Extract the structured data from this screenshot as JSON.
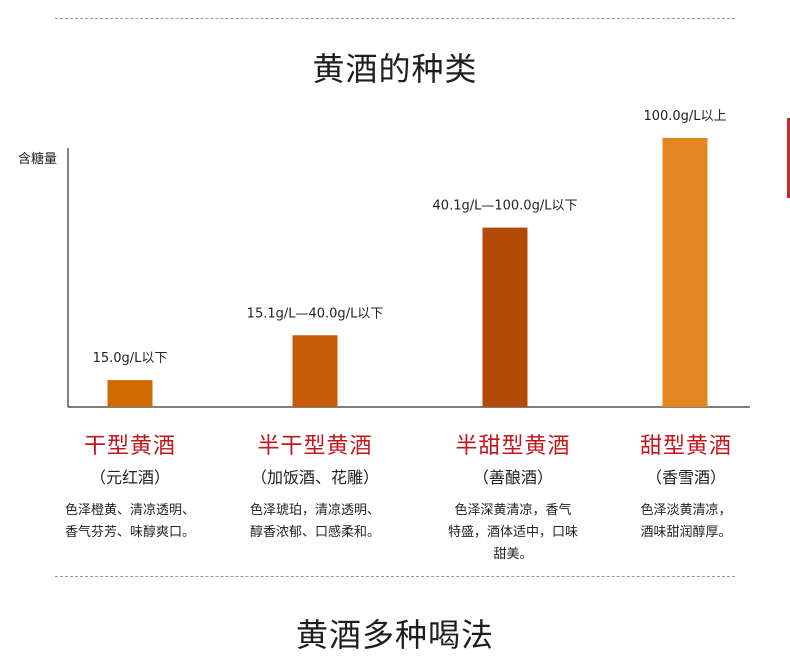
{
  "section_title": "黄酒的种类",
  "next_section_title": "黄酒多种喝法",
  "colors": {
    "accent_red": "#c3161c",
    "axis": "#333333"
  },
  "chart_data": {
    "type": "bar",
    "ylabel": "含糖量",
    "categories": [
      "干型黄酒",
      "半干型黄酒",
      "半甜型黄酒",
      "甜型黄酒"
    ],
    "values": [
      15.0,
      40.0,
      100.0,
      150.0
    ],
    "value_labels": [
      "15.0g/L以下",
      "15.1g/L—40.0g/L以下",
      "40.1g/L—100.0g/L以下",
      "100.0g/L以上"
    ],
    "bar_colors": [
      "#d06a00",
      "#c55a08",
      "#b04a04",
      "#e38620"
    ],
    "ylim": [
      0,
      160
    ],
    "grid": false
  },
  "categories": [
    {
      "name": "干型黄酒",
      "alias": "（元红酒）",
      "desc": [
        "色泽橙黄、清凉透明、",
        "香气芬芳、味醇爽口。"
      ]
    },
    {
      "name": "半干型黄酒",
      "alias": "（加饭酒、花雕）",
      "desc": [
        "色泽琥珀，清凉透明、",
        "醇香浓郁、口感柔和。"
      ]
    },
    {
      "name": "半甜型黄酒",
      "alias": "（善酿酒）",
      "desc": [
        "色泽深黄清凉，香气",
        "特盛，酒体适中，口味",
        "甜美。"
      ]
    },
    {
      "name": "甜型黄酒",
      "alias": "（香雪酒）",
      "desc": [
        "色泽淡黄清凉，",
        "酒味甜润醇厚。"
      ]
    }
  ]
}
